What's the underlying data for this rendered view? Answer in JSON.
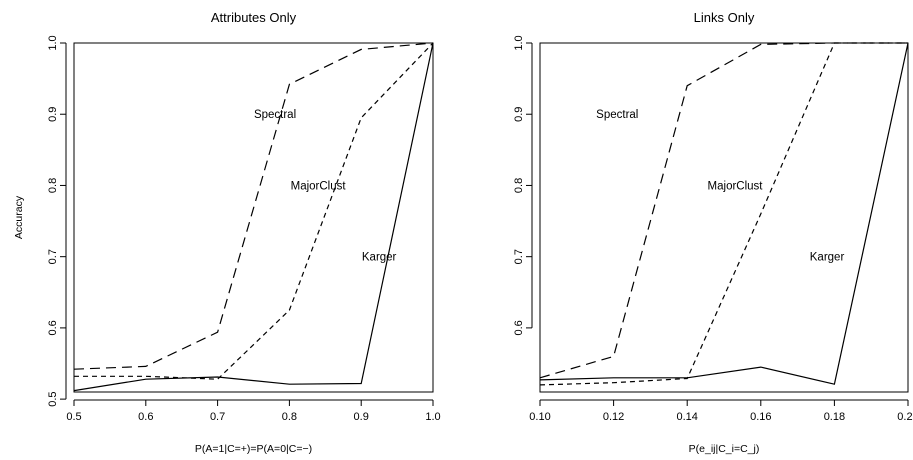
{
  "chart_data": [
    {
      "type": "line",
      "title": "Attributes Only",
      "xlabel": "P(A=1|C=+)=P(A=0|C=−)",
      "ylabel": "Accuracy",
      "xlim": [
        0.5,
        1.0
      ],
      "ylim": [
        0.51,
        1.0
      ],
      "xticks": [
        0.5,
        0.6,
        0.7,
        0.8,
        0.9,
        1.0
      ],
      "yticks": [
        0.5,
        0.6,
        0.7,
        0.8,
        0.9,
        1.0
      ],
      "xtick_labels": [
        "0.5",
        "0.6",
        "0.7",
        "0.8",
        "0.9",
        "1.0"
      ],
      "ytick_labels": [
        "0.5",
        "0.6",
        "0.7",
        "0.8",
        "0.9",
        "1.0"
      ],
      "grid": false,
      "legend": "none",
      "x": [
        0.5,
        0.6,
        0.7,
        0.8,
        0.9,
        1.0
      ],
      "series": [
        {
          "name": "Spectral",
          "style": "dashed",
          "values": [
            0.542,
            0.546,
            0.594,
            0.942,
            0.991,
            1.0
          ],
          "label_at": [
            0.78,
            0.9
          ]
        },
        {
          "name": "MajorClust",
          "style": "dotted",
          "values": [
            0.532,
            0.532,
            0.528,
            0.625,
            0.895,
            1.0
          ],
          "label_at": [
            0.84,
            0.8
          ]
        },
        {
          "name": "Karger",
          "style": "solid",
          "values": [
            0.512,
            0.528,
            0.531,
            0.521,
            0.522,
            1.0
          ],
          "label_at": [
            0.925,
            0.7
          ]
        }
      ]
    },
    {
      "type": "line",
      "title": "Links Only",
      "xlabel": "P(e_ij|C_i=C_j)",
      "ylabel": "",
      "xlim": [
        0.1,
        0.2
      ],
      "ylim": [
        0.51,
        1.0
      ],
      "xticks": [
        0.1,
        0.12,
        0.14,
        0.16,
        0.18,
        0.2
      ],
      "yticks": [
        0.6,
        0.7,
        0.8,
        0.9,
        1.0
      ],
      "xtick_labels": [
        "0.10",
        "0.12",
        "0.14",
        "0.16",
        "0.18",
        "0.20"
      ],
      "ytick_labels": [
        "0.6",
        "0.7",
        "0.8",
        "0.9",
        "1.0"
      ],
      "grid": false,
      "legend": "none",
      "x": [
        0.1,
        0.12,
        0.14,
        0.16,
        0.18,
        0.2
      ],
      "series": [
        {
          "name": "Spectral",
          "style": "dashed",
          "values": [
            0.53,
            0.56,
            0.94,
            0.998,
            1.0,
            1.0
          ],
          "label_at": [
            0.121,
            0.9
          ]
        },
        {
          "name": "MajorClust",
          "style": "dotted",
          "values": [
            0.52,
            0.523,
            0.529,
            0.76,
            1.0,
            1.0
          ],
          "label_at": [
            0.153,
            0.8
          ]
        },
        {
          "name": "Karger",
          "style": "solid",
          "values": [
            0.527,
            0.53,
            0.53,
            0.545,
            0.521,
            1.0
          ],
          "label_at": [
            0.178,
            0.7
          ]
        }
      ]
    }
  ]
}
